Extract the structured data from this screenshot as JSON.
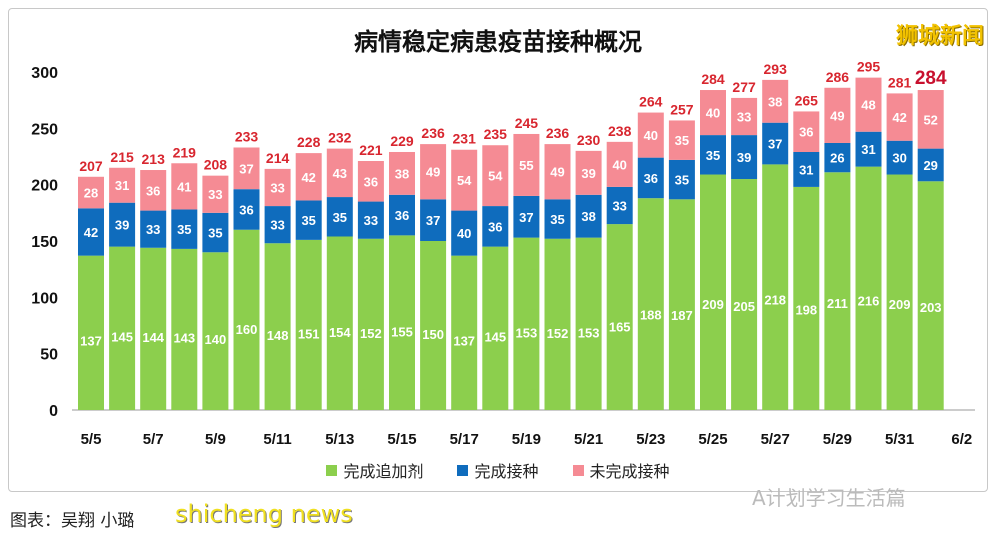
{
  "watermark": "狮城新闻",
  "credit": "图表：吴翔 小璐",
  "watermark2": "shicheng news",
  "wechat": "A计划学习生活篇",
  "colors": {
    "green": "#8ccf4d",
    "blue": "#0f6cbd",
    "red": "#f58b94",
    "total": "#d8262f"
  },
  "chart_data": {
    "type": "bar",
    "stacked": true,
    "title": "病情稳定病患疫苗接种概况",
    "categories": [
      "5/5",
      "5/6",
      "5/7",
      "5/8",
      "5/9",
      "5/10",
      "5/11",
      "5/12",
      "5/13",
      "5/14",
      "5/15",
      "5/16",
      "5/17",
      "5/18",
      "5/19",
      "5/20",
      "5/21",
      "5/22",
      "5/23",
      "5/24",
      "5/25",
      "5/26",
      "5/27",
      "5/28",
      "5/29",
      "5/30",
      "5/31",
      "6/1"
    ],
    "xticks": [
      "5/5",
      "5/7",
      "5/9",
      "5/11",
      "5/13",
      "5/15",
      "5/17",
      "5/19",
      "5/21",
      "5/23",
      "5/25",
      "5/27",
      "5/29",
      "5/31",
      "6/2"
    ],
    "yticks": [
      0,
      50,
      100,
      150,
      200,
      250,
      300
    ],
    "ylim": [
      0,
      300
    ],
    "legend_position": "bottom",
    "grid": false,
    "series": [
      {
        "name": "完成追加剂",
        "color": "#8ccf4d",
        "values": [
          137,
          145,
          144,
          143,
          140,
          160,
          148,
          151,
          154,
          152,
          155,
          150,
          137,
          145,
          153,
          152,
          153,
          165,
          188,
          187,
          209,
          205,
          218,
          198,
          211,
          216,
          209,
          203
        ]
      },
      {
        "name": "完成接种",
        "color": "#0f6cbd",
        "values": [
          42,
          39,
          33,
          35,
          35,
          36,
          33,
          35,
          35,
          33,
          36,
          37,
          40,
          36,
          37,
          35,
          38,
          33,
          36,
          35,
          35,
          39,
          37,
          31,
          26,
          31,
          30,
          29
        ]
      },
      {
        "name": "未完成接种",
        "color": "#f58b94",
        "values": [
          28,
          31,
          36,
          41,
          33,
          37,
          33,
          42,
          43,
          36,
          38,
          49,
          54,
          54,
          55,
          49,
          39,
          40,
          40,
          35,
          40,
          33,
          38,
          36,
          49,
          48,
          42,
          52
        ]
      }
    ],
    "totals": [
      207,
      215,
      213,
      219,
      208,
      233,
      214,
      228,
      232,
      221,
      229,
      236,
      231,
      235,
      245,
      236,
      230,
      238,
      264,
      257,
      284,
      277,
      293,
      265,
      286,
      295,
      281,
      284
    ]
  }
}
